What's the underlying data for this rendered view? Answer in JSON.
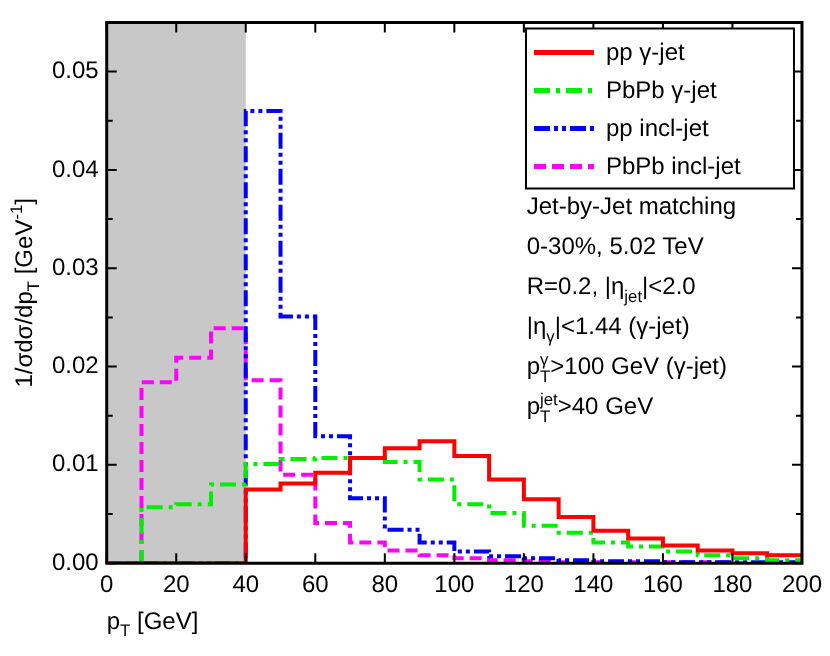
{
  "chart_data": {
    "type": "histogram",
    "xlabel": "p$_{T}$ [GeV]",
    "ylabel": "1/σdσ/dp$_{T}$ [GeV$^{-1}$]",
    "bins": [
      0,
      10,
      20,
      30,
      40,
      50,
      60,
      70,
      80,
      90,
      100,
      110,
      120,
      130,
      140,
      150,
      160,
      170,
      180,
      190,
      200
    ],
    "series": [
      {
        "name": "pp γ-jet",
        "color": "#ff0000",
        "line_style": "solid",
        "values": [
          0,
          0,
          0,
          0,
          0.0075,
          0.0081,
          0.0092,
          0.0107,
          0.0117,
          0.0124,
          0.0109,
          0.0085,
          0.0065,
          0.0047,
          0.0033,
          0.0025,
          0.0018,
          0.0013,
          0.001,
          0.0008
        ]
      },
      {
        "name": "PbPb γ-jet",
        "color": "#00ee00",
        "line_style": "dashdot",
        "values": [
          0,
          0.0057,
          0.006,
          0.008,
          0.0101,
          0.0106,
          0.0107,
          0.0107,
          0.0103,
          0.0085,
          0.006,
          0.0051,
          0.0038,
          0.0031,
          0.0021,
          0.0017,
          0.0012,
          0.0008,
          0.0005,
          0.0003
        ]
      },
      {
        "name": "pp incl-jet",
        "color": "#0000ff",
        "line_style": "dashdotdot",
        "values": [
          0,
          0,
          0,
          0,
          0.046,
          0.0251,
          0.0129,
          0.0066,
          0.0034,
          0.0021,
          0.0012,
          0.0007,
          0.0005,
          0.0003,
          0.0002,
          0.0002,
          0.0001,
          0.0001,
          0.0001,
          0.0001
        ]
      },
      {
        "name": "PbPb incl-jet",
        "color": "#ff00ff",
        "line_style": "dashed",
        "values": [
          0,
          0.0184,
          0.0209,
          0.0239,
          0.0186,
          0.009,
          0.0041,
          0.0021,
          0.0013,
          0.0008,
          0.0005,
          0.0003,
          0.0002,
          0.0001,
          0.0001,
          0.0001,
          0.0001,
          0.0001,
          0,
          0
        ]
      }
    ],
    "xlim": [
      0,
      200
    ],
    "xticks": [
      0,
      20,
      40,
      60,
      80,
      100,
      120,
      140,
      160,
      180,
      200
    ],
    "ylim": [
      0,
      0.055
    ],
    "yticks": [
      {
        "value": 0,
        "label": "0.00"
      },
      {
        "value": 0.01,
        "label": "0.01"
      },
      {
        "value": 0.02,
        "label": "0.02"
      },
      {
        "value": 0.03,
        "label": "0.03"
      },
      {
        "value": 0.04,
        "label": "0.04"
      },
      {
        "value": 0.05,
        "label": "0.05"
      }
    ],
    "bands": [
      {
        "axis": "x",
        "from": 0,
        "to": 40,
        "color": "#c8c8c8"
      }
    ],
    "annotations": [
      "Jet-by-Jet matching",
      "0-30%, 5.02 TeV",
      "R=0.2, |η$_{jet}$|<2.0",
      "|η$_{γ}$|<1.44 (γ-jet)",
      "p$_{T}$$^{γ}$>100 GeV (γ-jet)",
      "p$_{T}$$^{jet}$>40 GeV"
    ],
    "legend": "top right",
    "grid": false
  }
}
